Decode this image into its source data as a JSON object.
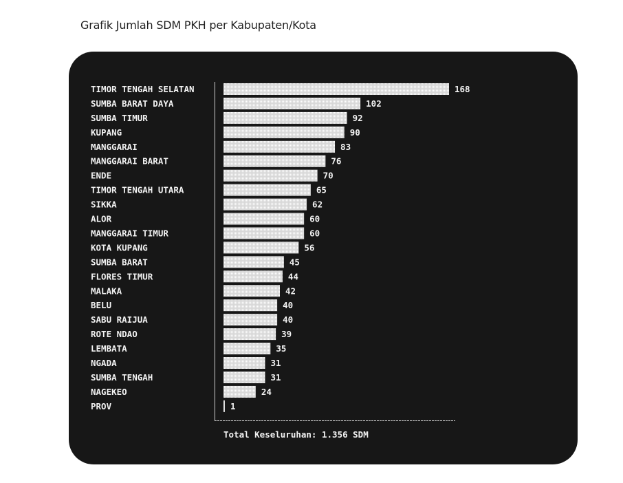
{
  "page": {
    "title": "Grafik Jumlah SDM PKH per Kabupaten/Kota"
  },
  "colors": {
    "background": "#ffffff",
    "terminal": "#171717",
    "bar": "#e8e8e8",
    "text": "#f2f2f2"
  },
  "chart_data": {
    "type": "bar",
    "orientation": "horizontal",
    "title": "Grafik Jumlah SDM PKH per Kabupaten/Kota",
    "categories": [
      "TIMOR TENGAH SELATAN",
      "SUMBA BARAT DAYA",
      "SUMBA TIMUR",
      "KUPANG",
      "MANGGARAI",
      "MANGGARAI BARAT",
      "ENDE",
      "TIMOR TENGAH UTARA",
      "SIKKA",
      "ALOR",
      "MANGGARAI TIMUR",
      "KOTA KUPANG",
      "SUMBA BARAT",
      "FLORES TIMUR",
      "MALAKA",
      "BELU",
      "SABU RAIJUA",
      "ROTE NDAO",
      "LEMBATA",
      "NGADA",
      "SUMBA TENGAH",
      "NAGEKEO",
      "PROV"
    ],
    "values": [
      168,
      102,
      92,
      90,
      83,
      76,
      70,
      65,
      62,
      60,
      60,
      56,
      45,
      44,
      42,
      40,
      40,
      39,
      35,
      31,
      31,
      24,
      1
    ],
    "xlim": [
      0,
      168
    ],
    "grid": false,
    "legend": "none",
    "total_label": "Total Keseluruhan: 1.356 SDM"
  }
}
